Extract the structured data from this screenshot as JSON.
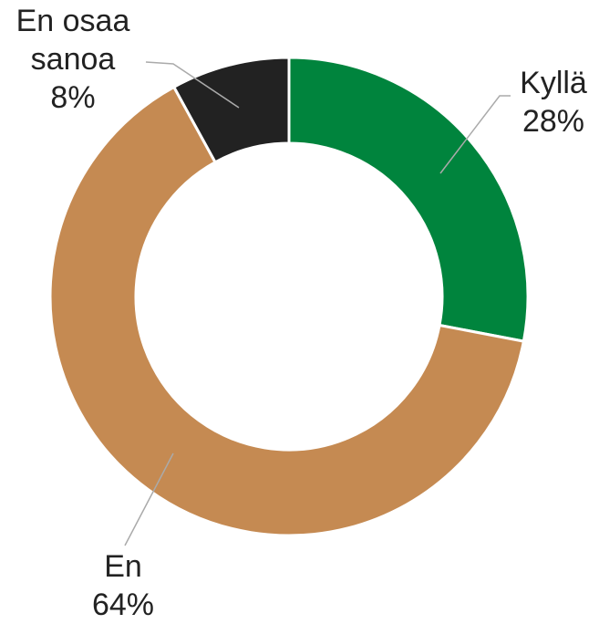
{
  "chart_data": {
    "type": "donut",
    "categories": [
      "Kyllä",
      "En",
      "En osaa sanoa"
    ],
    "values": [
      28,
      64,
      8
    ],
    "value_labels": [
      "28%",
      "64%",
      "8%"
    ],
    "colors": [
      "#00843d",
      "#c58a52",
      "#222222"
    ]
  }
}
